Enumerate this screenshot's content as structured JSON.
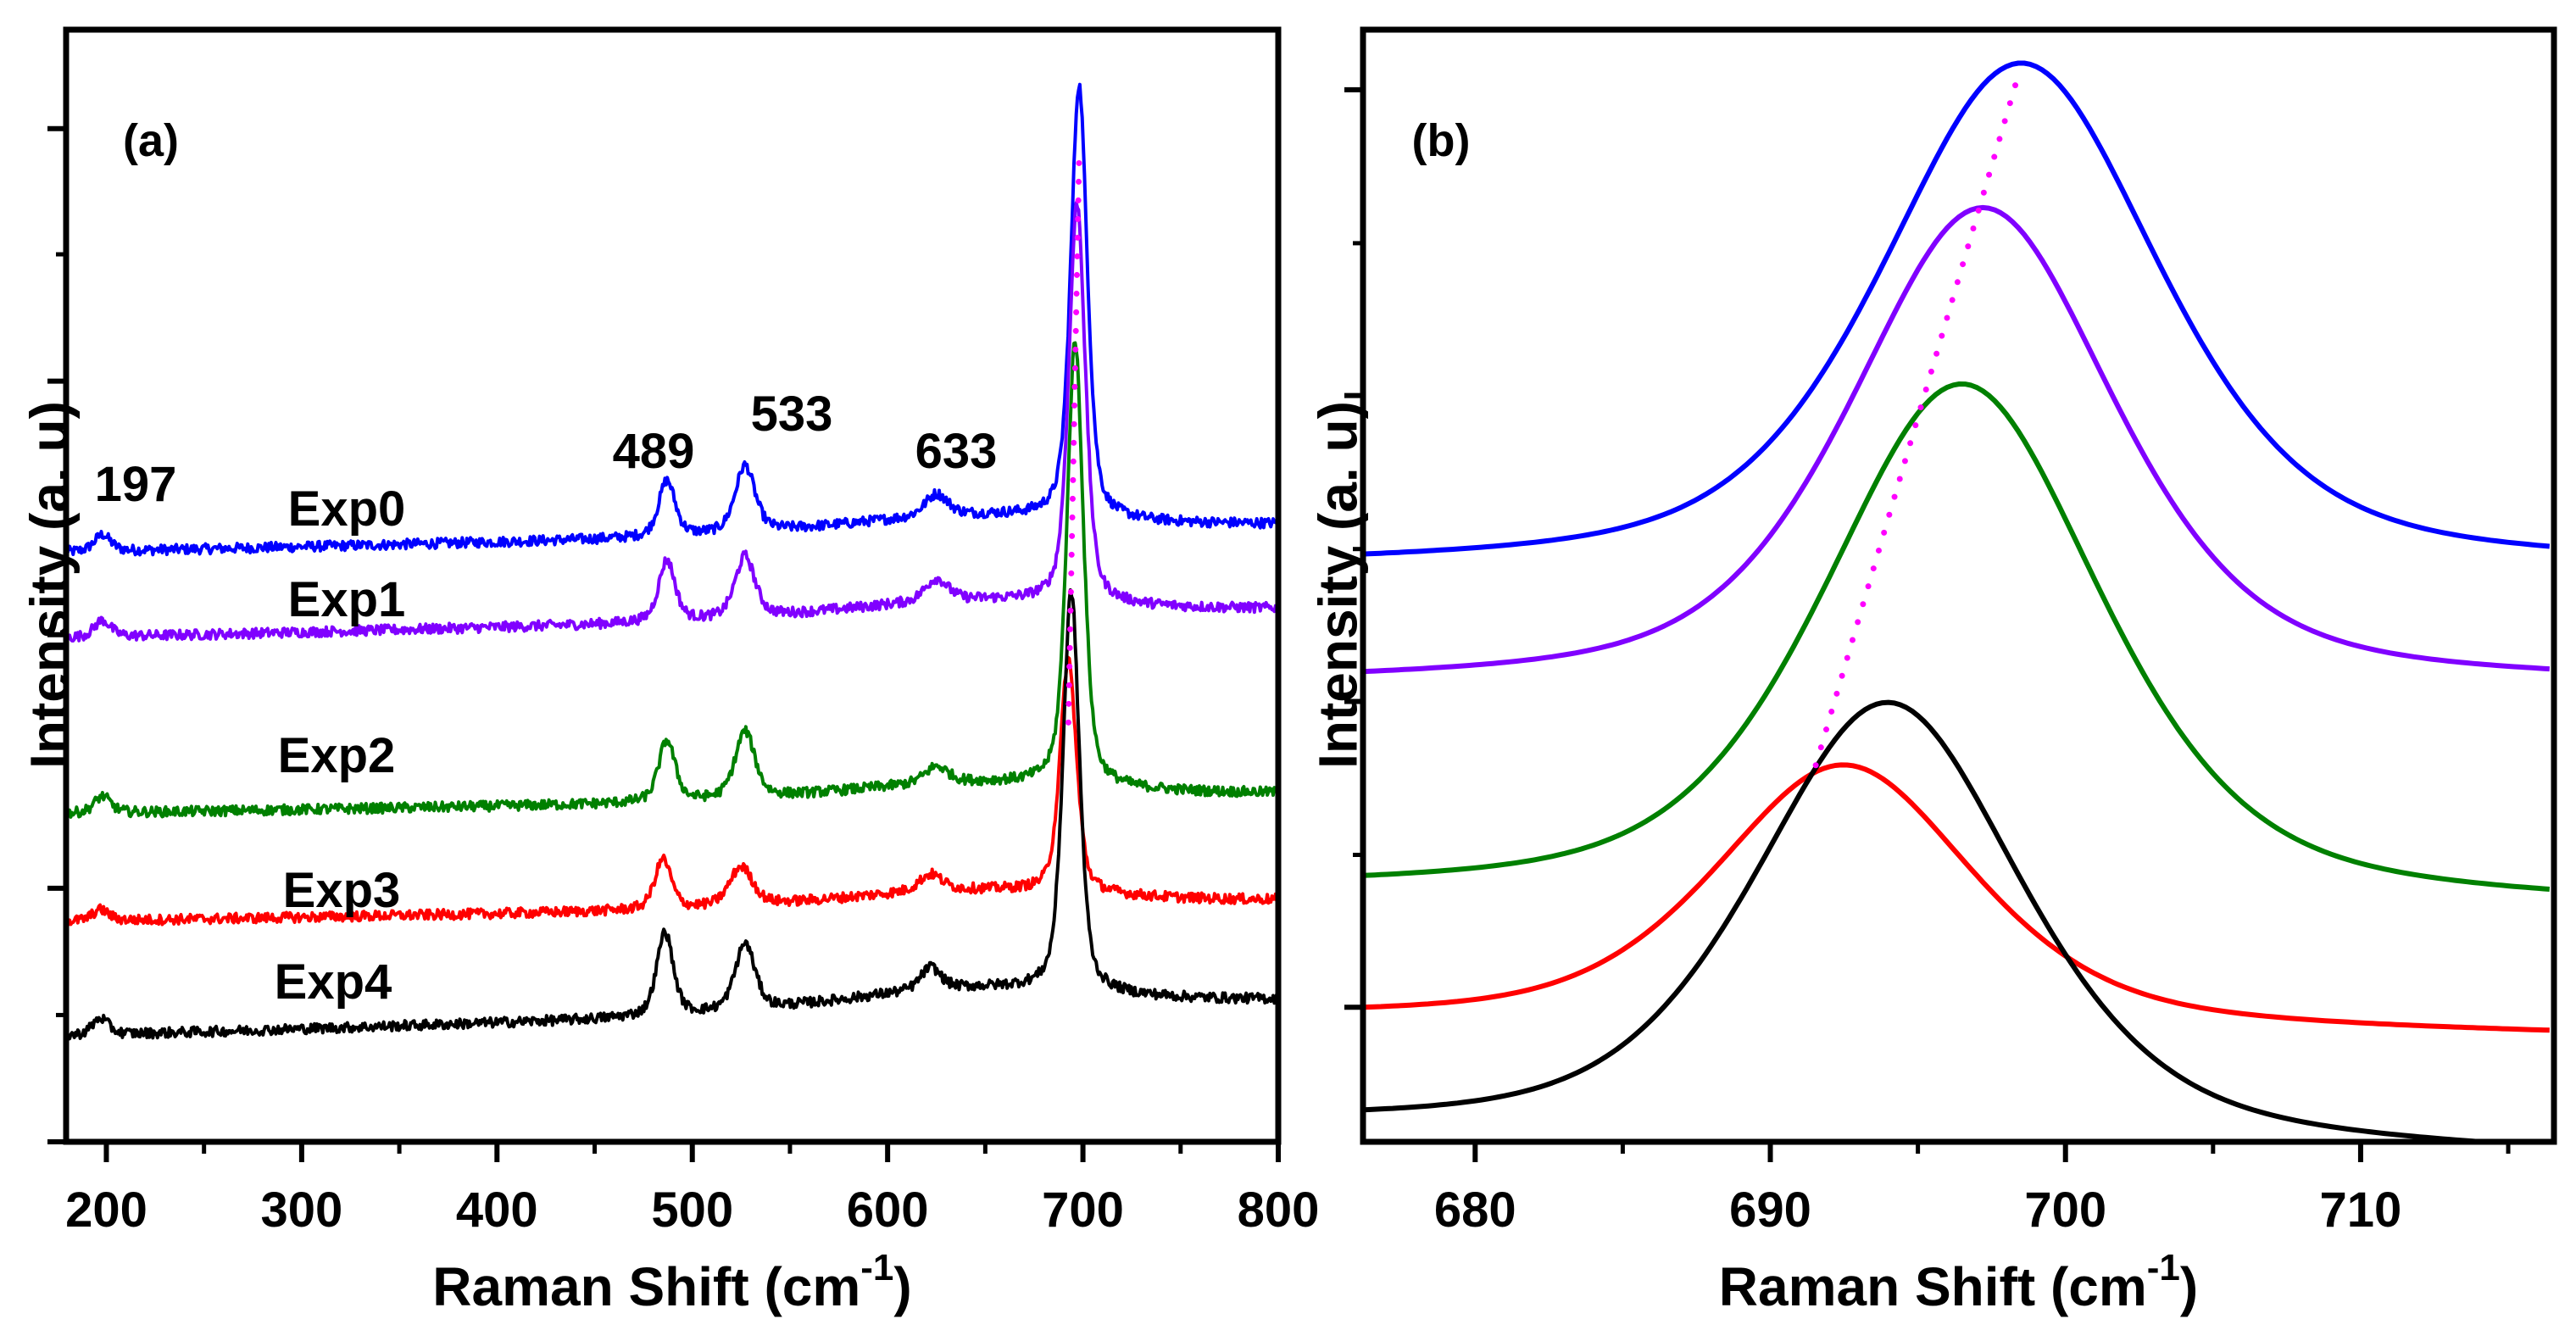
{
  "chart_data": [
    {
      "type": "line",
      "panel_label": "(a)",
      "xlabel": "Raman Shift (cm",
      "xlabel_sup": "-1",
      "xlabel_end": ")",
      "ylabel": "Intensity (a. u)",
      "xlim": [
        179.4,
        800
      ],
      "ylim": [
        0,
        100
      ],
      "xticks": [
        200,
        300,
        400,
        500,
        600,
        700,
        800
      ],
      "xticks_minor": [
        250,
        350,
        450,
        550,
        650,
        750
      ],
      "yticks": [
        0,
        22.8,
        45.6,
        68.4,
        91.1
      ],
      "yticks_minor": [
        11.4,
        34.2,
        57,
        79.8
      ],
      "grid": false,
      "noise": 0.45,
      "series": [
        {
          "name": "Exp0",
          "color": "#0000ff",
          "baseline": [
            53,
            55.4
          ],
          "peaks": [
            [
              198,
              1.5,
              5
            ],
            [
              487,
              5,
              5
            ],
            [
              527,
              6,
              6
            ],
            [
              625,
              2,
              7
            ],
            [
              640,
              1.5,
              80
            ],
            [
              698,
              39,
              5
            ]
          ]
        },
        {
          "name": "Exp1",
          "color": "#8000ff",
          "baseline": [
            45.3,
            47.8
          ],
          "peaks": [
            [
              198,
              1.5,
              5
            ],
            [
              487,
              5.5,
              5
            ],
            [
              527,
              5.5,
              6
            ],
            [
              625,
              2,
              7
            ],
            [
              640,
              1.5,
              80
            ],
            [
              697,
              36,
              5
            ]
          ]
        },
        {
          "name": "Exp2",
          "color": "#008000",
          "baseline": [
            29.5,
            31.2
          ],
          "peaks": [
            [
              198,
              1.5,
              5
            ],
            [
              487,
              5.5,
              5
            ],
            [
              527,
              6,
              6
            ],
            [
              625,
              1.5,
              7
            ],
            [
              640,
              1.5,
              80
            ],
            [
              696,
              40,
              5
            ]
          ]
        },
        {
          "name": "Exp3",
          "color": "#ff0000",
          "baseline": [
            19.8,
            21.6
          ],
          "peaks": [
            [
              197,
              1,
              5
            ],
            [
              485,
              4.5,
              5
            ],
            [
              525,
              3.5,
              7
            ],
            [
              622,
              1.5,
              7
            ],
            [
              640,
              1.5,
              80
            ],
            [
              692.5,
              21,
              5
            ]
          ]
        },
        {
          "name": "Exp4",
          "color": "#000000",
          "baseline": [
            9.5,
            12.6
          ],
          "peaks": [
            [
              197,
              1.5,
              5
            ],
            [
              486,
              7.5,
              5
            ],
            [
              527,
              6,
              6
            ],
            [
              622,
              2,
              6
            ],
            [
              640,
              2,
              80
            ],
            [
              694,
              36,
              5
            ]
          ]
        }
      ],
      "shift_guide": {
        "color": "#ff00ff",
        "from": [
          698,
          88
        ],
        "to": [
          692.5,
          37
        ]
      },
      "annotations": [
        "197",
        "489",
        "533",
        "633"
      ]
    },
    {
      "type": "line",
      "panel_label": "(b)",
      "xlabel": "Raman Shift (cm",
      "xlabel_sup": "-1",
      "xlabel_end": ")",
      "ylabel": "Intensity (a. u)",
      "xlim": [
        676.2,
        716.55
      ],
      "ylim": [
        0,
        100
      ],
      "xticks": [
        680,
        690,
        700,
        710
      ],
      "xticks_minor": [
        685,
        695,
        705,
        715
      ],
      "yticks": [
        12.1,
        39.6,
        67.1,
        94.6
      ],
      "yticks_minor": [
        25.8,
        53.3,
        80.8
      ],
      "grid": false,
      "series": [
        {
          "name": "Exp0",
          "color": "#0000ff",
          "baseline": [
            51.5,
            51.5
          ],
          "peaks": [
            [
              698.5,
              45.5,
              5.6
            ]
          ]
        },
        {
          "name": "Exp1",
          "color": "#8000ff",
          "baseline": [
            41,
            41
          ],
          "peaks": [
            [
              697.2,
              43,
              5.3
            ]
          ]
        },
        {
          "name": "Exp2",
          "color": "#008000",
          "baseline": [
            22.3,
            21
          ],
          "peaks": [
            [
              696.5,
              46.5,
              5.6
            ]
          ]
        },
        {
          "name": "Exp3",
          "color": "#ff0000",
          "baseline": [
            11,
            9.5
          ],
          "peaks": [
            [
              692.5,
              23.5,
              5.2
            ]
          ]
        },
        {
          "name": "Exp4",
          "color": "#000000",
          "baseline": [
            1.2,
            -1.5
          ],
          "peaks": [
            [
              694,
              39.5,
              5.4
            ]
          ]
        }
      ],
      "shift_guide": {
        "color": "#ff00ff",
        "from": [
          698.3,
          95
        ],
        "to": [
          691.5,
          33.5
        ]
      }
    }
  ]
}
